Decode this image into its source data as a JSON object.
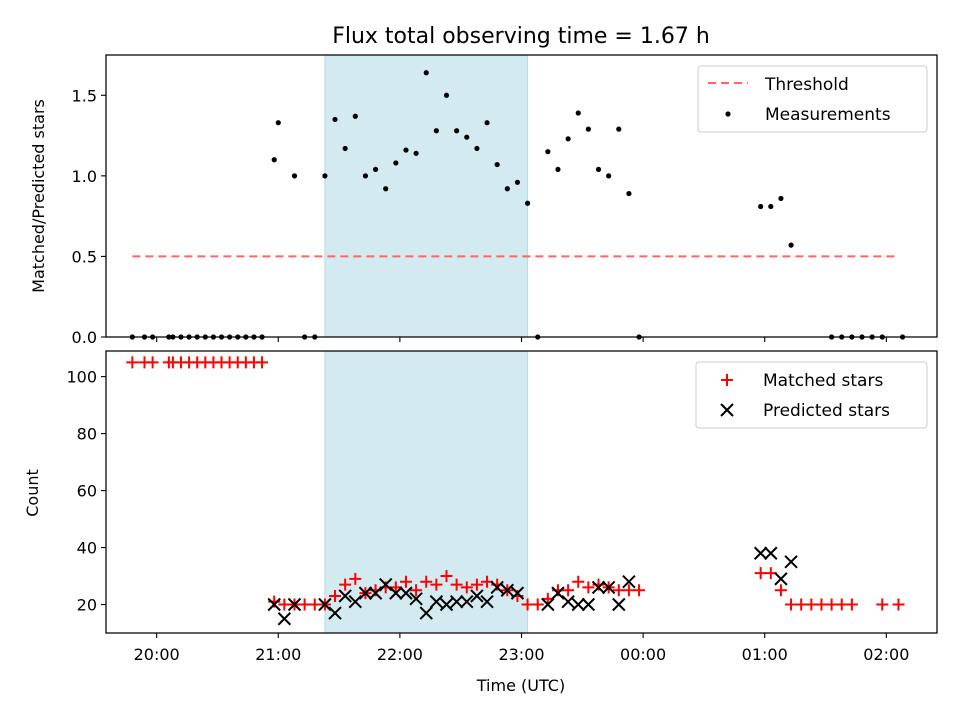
{
  "chart_data": [
    {
      "type": "scatter",
      "title": "Flux total observing time = 1.67 h",
      "xlabel": "",
      "ylabel": "Matched/Predicted stars",
      "ylim": [
        0,
        1.75
      ],
      "xlim": [
        "19:35",
        "02:25"
      ],
      "xticks": [
        "20:00",
        "21:00",
        "22:00",
        "23:00",
        "00:00",
        "01:00",
        "02:00"
      ],
      "xtick_labels_visible": false,
      "yticks": [
        "0.0",
        "0.5",
        "1.0",
        "1.5"
      ],
      "highlight_span": {
        "start": "21:23",
        "end": "23:03",
        "color": "#d3eaf0"
      },
      "legend": {
        "placement": "top-right",
        "entries": [
          "Threshold",
          "Measurements"
        ]
      },
      "threshold": {
        "name": "Threshold",
        "value": 0.5,
        "x_range": [
          "19:48",
          "02:06"
        ],
        "color": "#ff6666",
        "style": "dashed"
      },
      "series": [
        {
          "name": "Measurements",
          "color": "#000000",
          "x": [
            "19:48",
            "19:54",
            "19:58",
            "20:06",
            "20:08",
            "20:12",
            "20:16",
            "20:20",
            "20:24",
            "20:28",
            "20:32",
            "20:36",
            "20:40",
            "20:44",
            "20:48",
            "20:52",
            "20:58",
            "21:00",
            "21:08",
            "21:13",
            "21:18",
            "21:23",
            "21:28",
            "21:33",
            "21:38",
            "21:43",
            "21:48",
            "21:53",
            "21:58",
            "22:03",
            "22:08",
            "22:13",
            "22:18",
            "22:23",
            "22:28",
            "22:33",
            "22:38",
            "22:43",
            "22:48",
            "22:53",
            "22:58",
            "23:03",
            "23:08",
            "23:13",
            "23:18",
            "23:23",
            "23:28",
            "23:33",
            "23:38",
            "23:43",
            "23:48",
            "23:53",
            "23:58",
            "00:58",
            "01:03",
            "01:08",
            "01:13",
            "01:33",
            "01:38",
            "01:43",
            "01:48",
            "01:53",
            "01:58",
            "02:08"
          ],
          "y": [
            0,
            0,
            0,
            0,
            0,
            0,
            0,
            0,
            0,
            0,
            0,
            0,
            0,
            0,
            0,
            0,
            1.1,
            1.33,
            1.0,
            0,
            0,
            1.0,
            1.35,
            1.17,
            1.37,
            1.0,
            1.04,
            0.92,
            1.08,
            1.16,
            1.14,
            1.64,
            1.28,
            1.5,
            1.28,
            1.24,
            1.17,
            1.33,
            1.07,
            0.92,
            0.96,
            0.83,
            0,
            1.15,
            1.04,
            1.23,
            1.39,
            1.29,
            1.04,
            1.0,
            1.29,
            0.89,
            0,
            0.81,
            0.81,
            0.86,
            0.57,
            0,
            0,
            0,
            0,
            0,
            0,
            0
          ]
        }
      ]
    },
    {
      "type": "scatter",
      "title": "",
      "xlabel": "Time (UTC)",
      "ylabel": "Count",
      "ylim": [
        10,
        109
      ],
      "xlim": [
        "19:35",
        "02:25"
      ],
      "xticks": [
        "20:00",
        "21:00",
        "22:00",
        "23:00",
        "00:00",
        "01:00",
        "02:00"
      ],
      "yticks": [
        "20",
        "40",
        "60",
        "80",
        "100"
      ],
      "highlight_span": {
        "start": "21:23",
        "end": "23:03",
        "color": "#d3eaf0"
      },
      "legend": {
        "placement": "top-right",
        "entries": [
          "Matched stars",
          "Predicted stars"
        ]
      },
      "series": [
        {
          "name": "Matched stars",
          "color": "#ff0000",
          "marker": "+",
          "x": [
            "19:48",
            "19:54",
            "19:58",
            "20:06",
            "20:08",
            "20:12",
            "20:16",
            "20:20",
            "20:24",
            "20:28",
            "20:32",
            "20:36",
            "20:40",
            "20:44",
            "20:48",
            "20:52",
            "20:58",
            "21:03",
            "21:08",
            "21:13",
            "21:18",
            "21:23",
            "21:28",
            "21:33",
            "21:38",
            "21:43",
            "21:48",
            "21:53",
            "21:58",
            "22:03",
            "22:08",
            "22:13",
            "22:18",
            "22:23",
            "22:28",
            "22:33",
            "22:38",
            "22:43",
            "22:48",
            "22:53",
            "22:58",
            "23:03",
            "23:08",
            "23:13",
            "23:18",
            "23:23",
            "23:28",
            "23:33",
            "23:38",
            "23:43",
            "23:48",
            "23:53",
            "23:58",
            "00:58",
            "01:03",
            "01:08",
            "01:13",
            "01:18",
            "01:23",
            "01:28",
            "01:33",
            "01:38",
            "01:43",
            "01:58",
            "02:06"
          ],
          "y": [
            105,
            105,
            105,
            105,
            105,
            105,
            105,
            105,
            105,
            105,
            105,
            105,
            105,
            105,
            105,
            105,
            21,
            20,
            20,
            20,
            20,
            20,
            23,
            27,
            29,
            24,
            25,
            26,
            26,
            28,
            25,
            28,
            27,
            30,
            27,
            26,
            27,
            28,
            27,
            25,
            23,
            20,
            20,
            22,
            25,
            25,
            28,
            26,
            27,
            26,
            25,
            25,
            25,
            31,
            31,
            25,
            20,
            20,
            20,
            20,
            20,
            20,
            20,
            20,
            20
          ]
        },
        {
          "name": "Predicted stars",
          "color": "#000000",
          "marker": "x",
          "x": [
            "20:58",
            "21:03",
            "21:08",
            "21:23",
            "21:28",
            "21:33",
            "21:38",
            "21:43",
            "21:48",
            "21:53",
            "21:58",
            "22:03",
            "22:08",
            "22:13",
            "22:18",
            "22:23",
            "22:28",
            "22:33",
            "22:38",
            "22:43",
            "22:48",
            "22:53",
            "22:58",
            "23:13",
            "23:18",
            "23:23",
            "23:28",
            "23:33",
            "23:38",
            "23:43",
            "23:48",
            "23:53",
            "00:58",
            "01:03",
            "01:08",
            "01:13"
          ],
          "y": [
            20,
            15,
            20,
            20,
            17,
            23,
            21,
            24,
            24,
            27,
            24,
            24,
            22,
            17,
            21,
            20,
            21,
            21,
            23,
            21,
            26,
            25,
            24,
            20,
            24,
            21,
            20,
            20,
            26,
            26,
            20,
            28,
            38,
            38,
            29,
            35
          ]
        }
      ]
    }
  ]
}
